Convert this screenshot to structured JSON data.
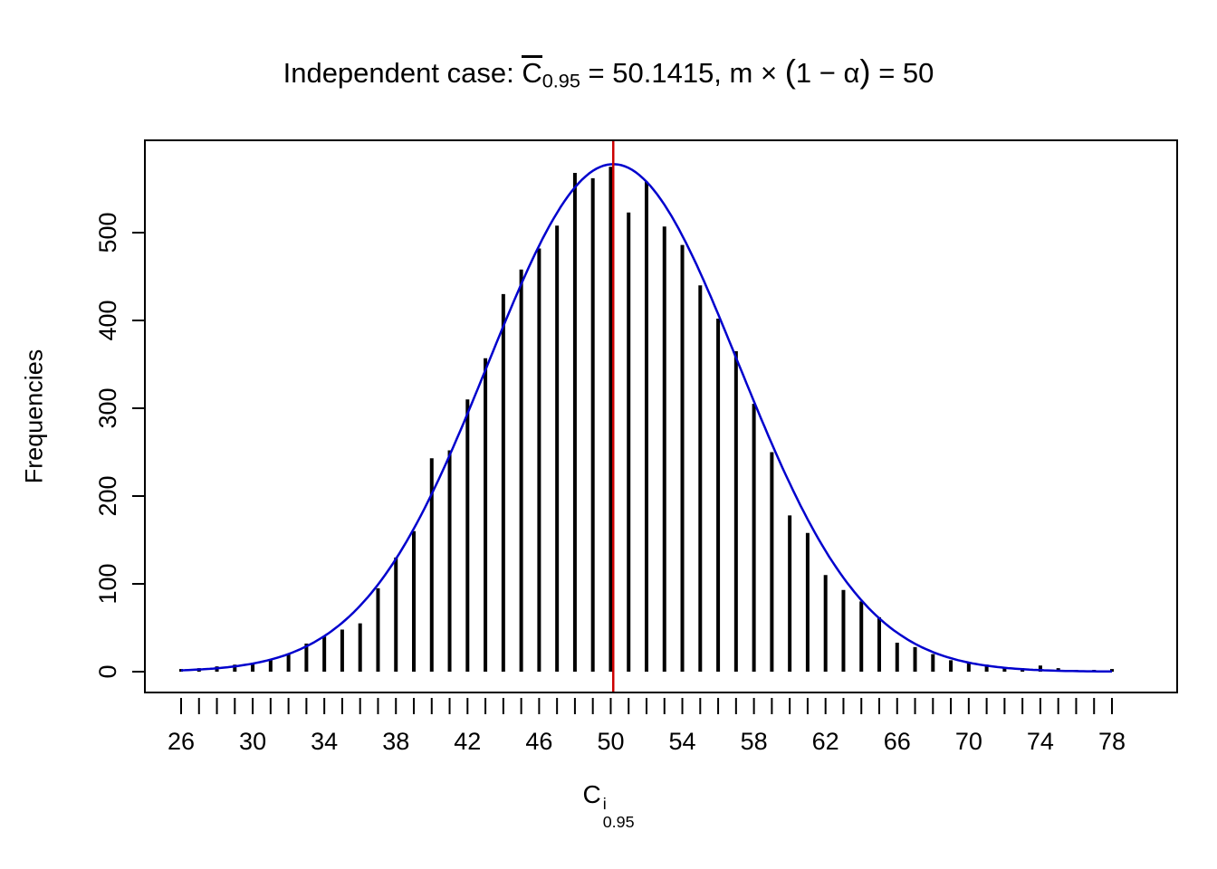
{
  "figure": {
    "title": {
      "prefix": "Independent case: ",
      "c_letter": "C",
      "c_sub": "0.95",
      "mid": " = 50.1415,  m ",
      "times": "× ",
      "paren_open": "(",
      "paren_inner": "1 − α",
      "paren_close": ")",
      "suffix": " = 50"
    },
    "xlabel": {
      "letter": "C",
      "sup": "i",
      "sub": "0.95"
    },
    "ylabel": "Frequencies"
  },
  "chart_data": {
    "type": "bar",
    "title": "Independent case: C̅0.95 = 50.1415, m × (1 − α) = 50",
    "xlabel": "C^i_0.95",
    "ylabel": "Frequencies",
    "xlim": [
      26,
      78
    ],
    "ylim": [
      0,
      605
    ],
    "grid": false,
    "legend": "none",
    "x": [
      26,
      27,
      28,
      29,
      30,
      31,
      32,
      33,
      34,
      35,
      36,
      37,
      38,
      39,
      40,
      41,
      42,
      43,
      44,
      45,
      46,
      47,
      48,
      49,
      50,
      51,
      52,
      53,
      54,
      55,
      56,
      57,
      58,
      59,
      60,
      61,
      62,
      63,
      64,
      65,
      66,
      67,
      68,
      69,
      70,
      71,
      72,
      73,
      74,
      75,
      76,
      77,
      78
    ],
    "frequencies": [
      3,
      4,
      6,
      8,
      10,
      13,
      20,
      32,
      40,
      48,
      55,
      95,
      130,
      160,
      243,
      252,
      310,
      357,
      430,
      458,
      482,
      508,
      568,
      562,
      575,
      523,
      558,
      507,
      486,
      440,
      402,
      365,
      305,
      250,
      178,
      158,
      110,
      93,
      80,
      62,
      33,
      28,
      20,
      13,
      10,
      8,
      5,
      4,
      7,
      4,
      2,
      2,
      3
    ],
    "y_ticks": [
      0,
      100,
      200,
      300,
      400,
      500
    ],
    "x_label_ticks": [
      26,
      30,
      34,
      38,
      42,
      46,
      50,
      54,
      58,
      62,
      66,
      70,
      74,
      78
    ],
    "bar_color": "#000000",
    "curve": {
      "shape": "gaussian",
      "mu": 50.1415,
      "sigma": 7.0,
      "peak": 578,
      "color": "#0000CD",
      "label": "fitted normal density"
    },
    "ref_line": {
      "x": 50.1415,
      "color": "#CC0000",
      "label": "mean reference line"
    }
  }
}
